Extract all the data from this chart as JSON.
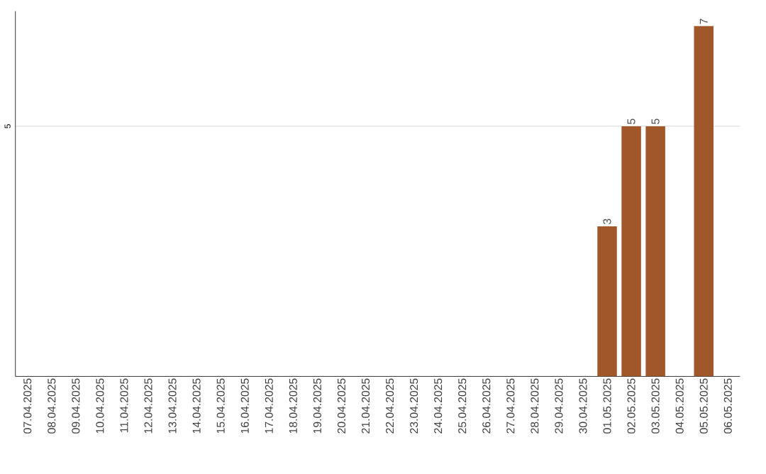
{
  "chart_data": {
    "type": "bar",
    "categories": [
      "07.04.2025",
      "08.04.2025",
      "09.04.2025",
      "10.04.2025",
      "11.04.2025",
      "12.04.2025",
      "13.04.2025",
      "14.04.2025",
      "15.04.2025",
      "16.04.2025",
      "17.04.2025",
      "18.04.2025",
      "19.04.2025",
      "20.04.2025",
      "21.04.2025",
      "22.04.2025",
      "23.04.2025",
      "24.04.2025",
      "25.04.2025",
      "26.04.2025",
      "27.04.2025",
      "28.04.2025",
      "29.04.2025",
      "30.04.2025",
      "01.05.2025",
      "02.05.2025",
      "03.05.2025",
      "04.05.2025",
      "05.05.2025",
      "06.05.2025"
    ],
    "values": [
      null,
      null,
      null,
      null,
      null,
      null,
      null,
      null,
      null,
      null,
      null,
      null,
      null,
      null,
      null,
      null,
      null,
      null,
      null,
      null,
      null,
      null,
      null,
      null,
      3,
      5,
      5,
      null,
      7,
      null
    ],
    "color": "#a0572a",
    "ylim": [
      0,
      7.3
    ],
    "yticks": [
      5
    ],
    "grid": "y",
    "data_labels": true
  }
}
